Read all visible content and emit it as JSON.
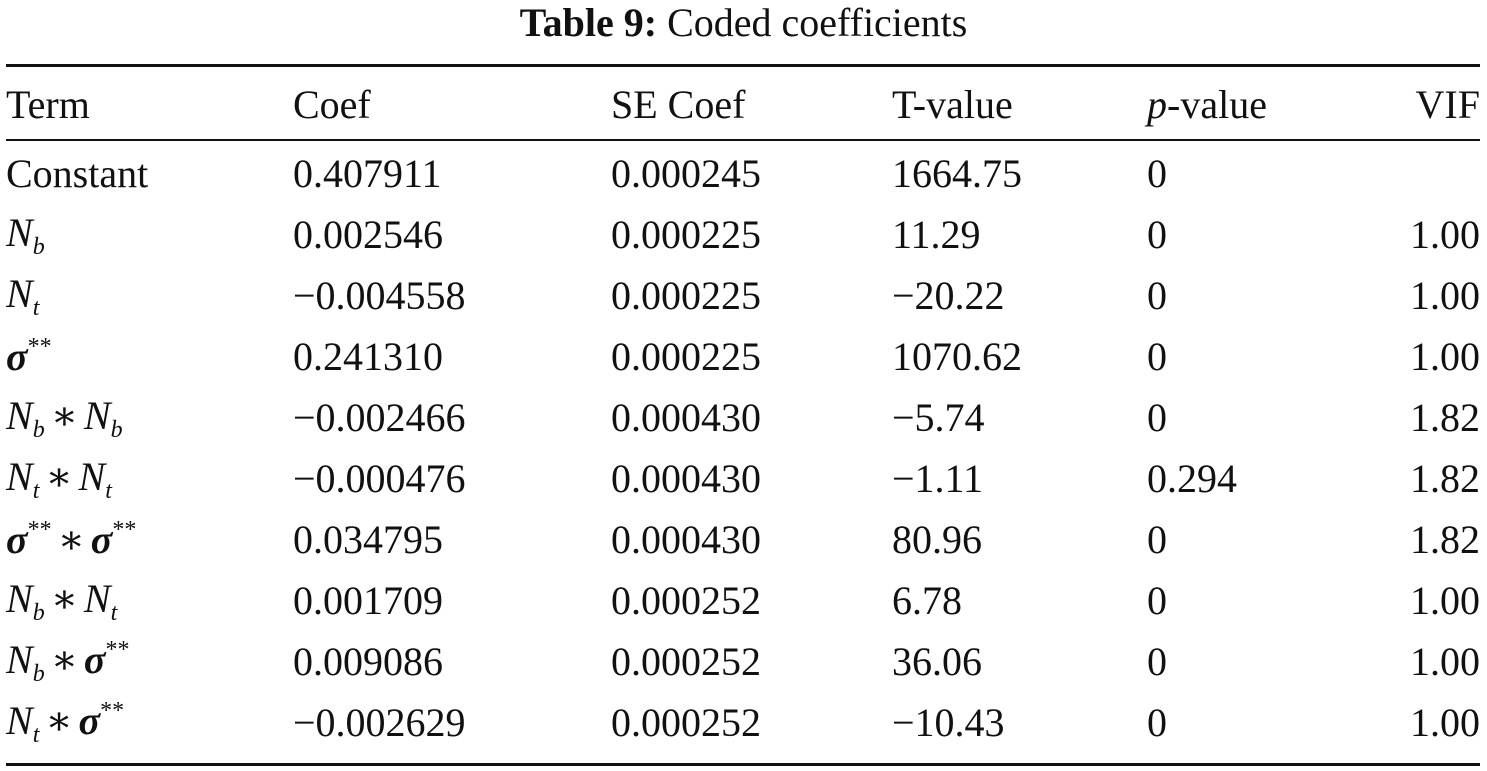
{
  "caption": {
    "label": "Table 9:",
    "title": "Coded coefficients"
  },
  "columns": {
    "term": "Term",
    "coef": "Coef",
    "se_coef": "SE Coef",
    "t_value": "T-value",
    "p_value_italic": "p",
    "p_value_rest": "-value",
    "vif": "VIF"
  },
  "rows": [
    {
      "term": "Constant",
      "coef": "0.407911",
      "se": "0.000245",
      "t": "1664.75",
      "p": "0",
      "vif": ""
    },
    {
      "term": "Nb",
      "coef": "0.002546",
      "se": "0.000225",
      "t": "11.29",
      "p": "0",
      "vif": "1.00"
    },
    {
      "term": "Nt",
      "coef": "−0.004558",
      "se": "0.000225",
      "t": "−20.22",
      "p": "0",
      "vif": "1.00"
    },
    {
      "term": "σ**",
      "coef": "0.241310",
      "se": "0.000225",
      "t": "1070.62",
      "p": "0",
      "vif": "1.00"
    },
    {
      "term": "Nb ∗ Nb",
      "coef": "−0.002466",
      "se": "0.000430",
      "t": "−5.74",
      "p": "0",
      "vif": "1.82"
    },
    {
      "term": "Nt ∗ Nt",
      "coef": "−0.000476",
      "se": "0.000430",
      "t": "−1.11",
      "p": "0.294",
      "vif": "1.82"
    },
    {
      "term": "σ** ∗ σ**",
      "coef": "0.034795",
      "se": "0.000430",
      "t": "80.96",
      "p": "0",
      "vif": "1.82"
    },
    {
      "term": "Nb ∗ Nt",
      "coef": "0.001709",
      "se": "0.000252",
      "t": "6.78",
      "p": "0",
      "vif": "1.00"
    },
    {
      "term": "Nb ∗ σ**",
      "coef": "0.009086",
      "se": "0.000252",
      "t": "36.06",
      "p": "0",
      "vif": "1.00"
    },
    {
      "term": "Nt ∗ σ**",
      "coef": "−0.002629",
      "se": "0.000252",
      "t": "−10.43",
      "p": "0",
      "vif": "1.00"
    }
  ]
}
